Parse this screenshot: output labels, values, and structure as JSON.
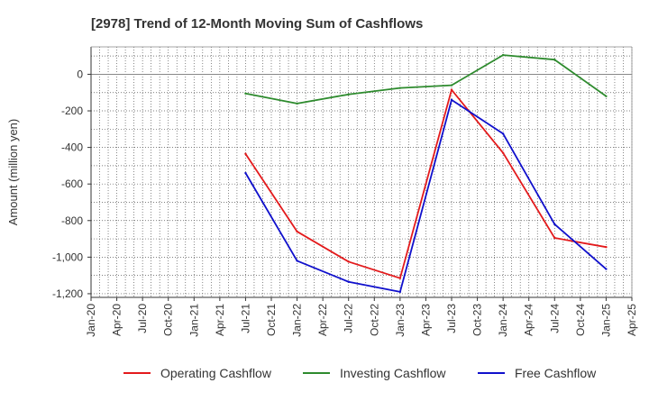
{
  "chart_data": {
    "type": "line",
    "title": "[2978]  Trend of 12-Month Moving Sum of Cashflows",
    "xlabel": "",
    "ylabel": "Amount (million yen)",
    "x_ticks": [
      "Jan-20",
      "Apr-20",
      "Jul-20",
      "Oct-20",
      "Jan-21",
      "Apr-21",
      "Jul-21",
      "Oct-21",
      "Jan-22",
      "Apr-22",
      "Jul-22",
      "Oct-22",
      "Jan-23",
      "Apr-23",
      "Jul-23",
      "Oct-23",
      "Jan-24",
      "Apr-24",
      "Jul-24",
      "Oct-24",
      "Jan-25",
      "Apr-25"
    ],
    "y_ticks": [
      0,
      -200,
      -400,
      -600,
      -800,
      -1000,
      -1200
    ],
    "y_tick_labels": [
      "0",
      "-200",
      "-400",
      "-600",
      "-800",
      "-1,000",
      "-1,200"
    ],
    "ylim": [
      -1220,
      150
    ],
    "grid": true,
    "legend_position": "bottom",
    "series": [
      {
        "name": "Operating Cashflow",
        "color": "#e31a1c",
        "x": [
          "Jul-21",
          "Jan-22",
          "Jul-22",
          "Jan-23",
          "Jul-23",
          "Jan-24",
          "Jul-24",
          "Jan-25"
        ],
        "values": [
          -435,
          -860,
          -1025,
          -1115,
          -85,
          -430,
          -895,
          -945
        ]
      },
      {
        "name": "Investing Cashflow",
        "color": "#2e8b2e",
        "x": [
          "Jul-21",
          "Jan-22",
          "Jul-22",
          "Jan-23",
          "Jul-23",
          "Jan-24",
          "Jul-24",
          "Jan-25"
        ],
        "values": [
          -105,
          -160,
          -110,
          -75,
          -60,
          105,
          80,
          -120
        ]
      },
      {
        "name": "Free Cashflow",
        "color": "#1010cc",
        "x": [
          "Jul-21",
          "Jan-22",
          "Jul-22",
          "Jan-23",
          "Jul-23",
          "Jan-24",
          "Jul-24",
          "Jan-25"
        ],
        "values": [
          -540,
          -1020,
          -1135,
          -1190,
          -140,
          -325,
          -820,
          -1065
        ]
      }
    ]
  }
}
